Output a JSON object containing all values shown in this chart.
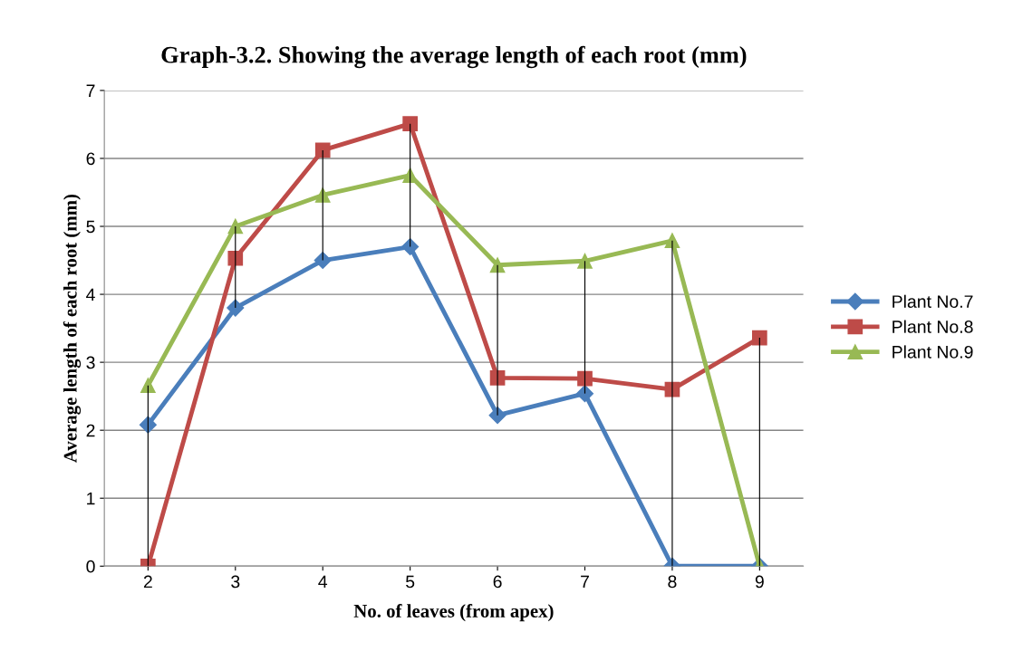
{
  "chart_data": {
    "type": "line",
    "title": "Graph-3.2. Showing the average length of each root (mm)",
    "xlabel": "No. of leaves (from apex)",
    "ylabel": "Average length of each root (mm)",
    "categories": [
      "2",
      "3",
      "4",
      "5",
      "6",
      "7",
      "8",
      "9"
    ],
    "series": [
      {
        "name": "Plant No.7",
        "color": "#4a7ebb",
        "marker": "diamond",
        "values": [
          2.08,
          3.8,
          4.5,
          4.7,
          2.22,
          2.54,
          0,
          0
        ]
      },
      {
        "name": "Plant No.8",
        "color": "#be4b48",
        "marker": "square",
        "values": [
          0,
          4.53,
          6.12,
          6.51,
          2.77,
          2.76,
          2.6,
          3.36
        ]
      },
      {
        "name": "Plant No.9",
        "color": "#98b954",
        "marker": "triangle",
        "values": [
          2.66,
          5.0,
          5.46,
          5.75,
          4.43,
          4.49,
          4.79,
          0
        ]
      },
      {
        "type": "bar",
        "color": "#000000",
        "base": [
          0,
          3.8,
          4.5,
          4.7,
          2.22,
          2.54,
          0,
          0
        ],
        "values": [
          2.66,
          1.2,
          1.62,
          1.81,
          2.21,
          1.95,
          4.79,
          3.36
        ]
      }
    ],
    "ylim": [
      0,
      7
    ],
    "yticks": [
      0,
      1,
      2,
      3,
      4,
      5,
      6,
      7
    ],
    "grid": "y",
    "legend": "right",
    "line_style": "solid"
  }
}
